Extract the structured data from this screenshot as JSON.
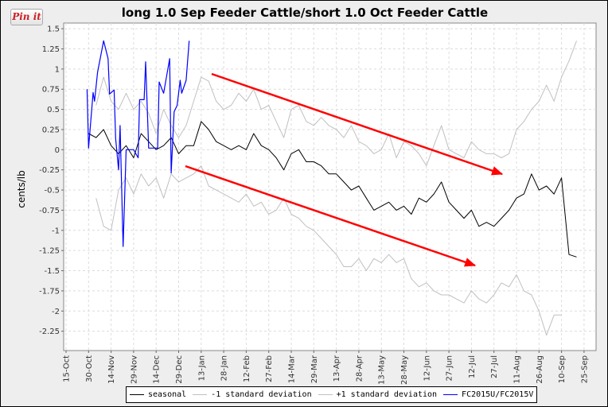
{
  "pin_button": {
    "label": "Pin it",
    "color": "#cb2027"
  },
  "chart_data": {
    "type": "line",
    "title": "long 1.0 Sep Feeder Cattle/short 1.0 Oct Feeder Cattle",
    "xlabel": "",
    "ylabel": "cents/lb",
    "ylim": [
      -2.49,
      1.57
    ],
    "grid": true,
    "legend_placement": "bottom",
    "x_ticks": [
      "15-Oct",
      "30-Oct",
      "14-Nov",
      "29-Nov",
      "14-Dec",
      "29-Dec",
      "13-Jan",
      "28-Jan",
      "12-Feb",
      "27-Feb",
      "14-Mar",
      "29-Mar",
      "13-Apr",
      "28-Apr",
      "13-May",
      "28-May",
      "12-Jun",
      "27-Jun",
      "12-Jul",
      "27-Jul",
      "11-Aug",
      "26-Aug",
      "10-Sep",
      "25-Sep"
    ],
    "y_ticks": [
      "1.5",
      "1.25",
      "1",
      "0.75",
      "0.5",
      "0.25",
      "0",
      "-0.25",
      "-0.5",
      "-0.75",
      "-1",
      "-1.25",
      "-1.5",
      "-1.75",
      "-2",
      "-2.25"
    ],
    "series": [
      {
        "name": "seasonal",
        "color": "#000000",
        "start": "30-Oct",
        "step_days": 5,
        "values": [
          0.2,
          0.15,
          0.25,
          0.05,
          -0.05,
          0.05,
          -0.1,
          0.2,
          0.1,
          0.0,
          0.05,
          0.15,
          -0.05,
          0.05,
          0.05,
          0.35,
          0.25,
          0.1,
          0.05,
          0.0,
          0.05,
          0.0,
          0.2,
          0.05,
          0.0,
          -0.1,
          -0.25,
          -0.05,
          0.0,
          -0.15,
          -0.15,
          -0.2,
          -0.3,
          -0.3,
          -0.4,
          -0.5,
          -0.45,
          -0.6,
          -0.75,
          -0.7,
          -0.65,
          -0.75,
          -0.7,
          -0.8,
          -0.6,
          -0.65,
          -0.55,
          -0.4,
          -0.65,
          -0.75,
          -0.85,
          -0.75,
          -0.95,
          -0.9,
          -0.95,
          -0.85,
          -0.75,
          -0.6,
          -0.55,
          -0.3,
          -0.5,
          -0.45,
          -0.55,
          -0.35,
          -1.3,
          -1.33
        ]
      },
      {
        "name": "-1 standard deviation",
        "color": "#c0c0c0",
        "start": "4-Nov",
        "step_days": 5,
        "values": [
          -0.6,
          -0.95,
          -1.0,
          -0.5,
          -0.35,
          -0.55,
          -0.3,
          -0.45,
          -0.35,
          -0.6,
          -0.3,
          -0.4,
          -0.35,
          -0.3,
          -0.2,
          -0.45,
          -0.5,
          -0.55,
          -0.6,
          -0.65,
          -0.55,
          -0.7,
          -0.65,
          -0.8,
          -0.75,
          -0.6,
          -0.8,
          -0.85,
          -0.95,
          -1.0,
          -1.1,
          -1.2,
          -1.3,
          -1.45,
          -1.45,
          -1.35,
          -1.5,
          -1.35,
          -1.4,
          -1.3,
          -1.4,
          -1.35,
          -1.6,
          -1.7,
          -1.65,
          -1.75,
          -1.8,
          -1.8,
          -1.85,
          -1.9,
          -1.75,
          -1.85,
          -1.9,
          -1.8,
          -1.65,
          -1.7,
          -1.55,
          -1.75,
          -1.8,
          -2.0,
          -2.3,
          -2.05,
          -2.05
        ]
      },
      {
        "name": "+1 standard deviation",
        "color": "#c0c0c0",
        "start": "4-Nov",
        "step_days": 5,
        "values": [
          0.55,
          0.9,
          0.6,
          0.5,
          0.7,
          0.5,
          0.6,
          0.45,
          0.2,
          0.5,
          0.3,
          0.15,
          0.3,
          0.6,
          0.9,
          0.85,
          0.6,
          0.5,
          0.55,
          0.7,
          0.6,
          0.75,
          0.5,
          0.55,
          0.35,
          0.15,
          0.5,
          0.55,
          0.35,
          0.3,
          0.4,
          0.3,
          0.25,
          0.15,
          0.3,
          0.1,
          0.05,
          -0.05,
          0.0,
          0.2,
          -0.1,
          0.1,
          0.05,
          -0.05,
          -0.2,
          0.05,
          0.3,
          0.0,
          -0.05,
          -0.1,
          0.1,
          0.0,
          -0.05,
          -0.05,
          -0.1,
          -0.05,
          0.25,
          0.35,
          0.5,
          0.6,
          0.8,
          0.6,
          0.9,
          1.1,
          1.35
        ]
      },
      {
        "name": "FC2015U/FC2015V",
        "color": "#0000ff",
        "points": [
          [
            "29-Oct",
            0.75
          ],
          [
            "30-Oct",
            0.02
          ],
          [
            "2-Nov",
            0.71
          ],
          [
            "3-Nov",
            0.6
          ],
          [
            "5-Nov",
            0.96
          ],
          [
            "9-Nov",
            1.35
          ],
          [
            "12-Nov",
            1.13
          ],
          [
            "13-Nov",
            0.69
          ],
          [
            "16-Nov",
            0.74
          ],
          [
            "17-Nov",
            0.14
          ],
          [
            "19-Nov",
            -0.25
          ],
          [
            "20-Nov",
            0.3
          ],
          [
            "22-Nov",
            -1.2
          ],
          [
            "24-Nov",
            0.0
          ],
          [
            "29-Nov",
            0.0
          ],
          [
            "2-Dec",
            -0.1
          ],
          [
            "3-Dec",
            0.62
          ],
          [
            "6-Dec",
            0.62
          ],
          [
            "7-Dec",
            1.09
          ],
          [
            "9-Dec",
            0.02
          ],
          [
            "15-Dec",
            0.02
          ],
          [
            "16-Dec",
            0.84
          ],
          [
            "19-Dec",
            0.7
          ],
          [
            "23-Dec",
            1.13
          ],
          [
            "24-Dec",
            -0.29
          ],
          [
            "26-Dec",
            0.47
          ],
          [
            "28-Dec",
            0.55
          ],
          [
            "30-Dec",
            0.86
          ],
          [
            "31-Dec",
            0.7
          ],
          [
            "3-Jan",
            0.86
          ],
          [
            "5-Jan",
            1.35
          ]
        ]
      }
    ],
    "annotations": [
      {
        "type": "arrow",
        "color": "#ff0000"
      },
      {
        "type": "arrow",
        "color": "#ff0000"
      }
    ]
  }
}
